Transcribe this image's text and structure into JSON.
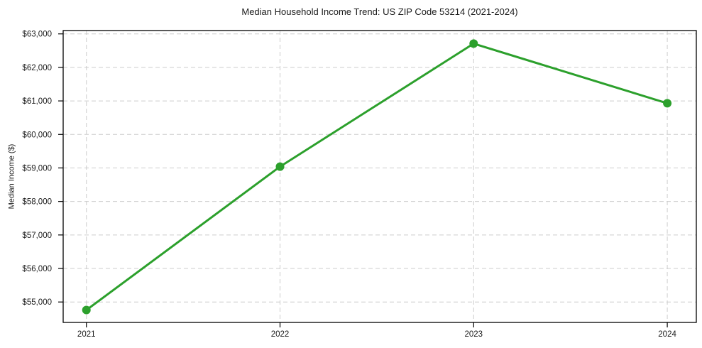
{
  "chart_data": {
    "type": "line",
    "title": "Median Household Income Trend: US ZIP Code 53214 (2021-2024)",
    "xlabel": "",
    "ylabel": "Median Income ($)",
    "categories": [
      2021,
      2022,
      2023,
      2024
    ],
    "xtick_labels": [
      "2021",
      "2022",
      "2023",
      "2024"
    ],
    "values": [
      54760,
      59040,
      62710,
      60930
    ],
    "yticks": [
      55000,
      56000,
      57000,
      58000,
      59000,
      60000,
      61000,
      62000,
      63000
    ],
    "ytick_labels": [
      "$55,000",
      "$56,000",
      "$57,000",
      "$58,000",
      "$59,000",
      "$60,000",
      "$61,000",
      "$62,000",
      "$63,000"
    ],
    "xlim": [
      2020.88,
      2024.15
    ],
    "ylim": [
      54390,
      63100
    ],
    "grid": true,
    "grid_linestyle": "dashed",
    "legend": "none",
    "marker": "circle",
    "colors": {
      "line": "#2ca02c",
      "marker": "#2ca02c",
      "grid": "#cccccc",
      "spine": "#000000",
      "text": "#1a1a1a",
      "background": "#ffffff"
    }
  }
}
